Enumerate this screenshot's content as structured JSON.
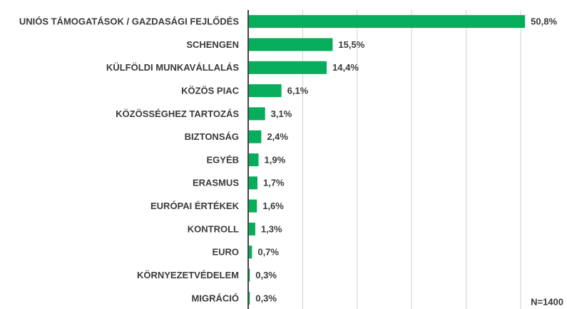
{
  "chart_data": {
    "type": "barh",
    "categories": [
      "UNIÓS TÁMOGATÁSOK / GAZDASÁGI FEJLŐDÉS",
      "SCHENGEN",
      "KÜLFÖLDI MUNKAVÁLLALÁS",
      "KÖZÖS PIAC",
      "KÖZÖSSÉGHEZ TARTOZÁS",
      "BIZTONSÁG",
      "EGYÉB",
      "ERASMUS",
      "EURÓPAI ÉRTÉKEK",
      "KONTROLL",
      "EURO",
      "KÖRNYEZETVÉDELEM",
      "MIGRÁCIÓ"
    ],
    "values": [
      50.8,
      15.5,
      14.4,
      6.1,
      3.1,
      2.4,
      1.9,
      1.7,
      1.6,
      1.3,
      0.7,
      0.3,
      0.3
    ],
    "value_labels": [
      "50,8%",
      "15,5%",
      "14,4%",
      "6,1%",
      "3,1%",
      "2,4%",
      "1,9%",
      "1,7%",
      "1,6%",
      "1,3%",
      "0,7%",
      "0,3%",
      "0,3%"
    ],
    "color": "#06ad5a",
    "xlim": [
      0,
      58.5
    ],
    "xticks": [
      10,
      20,
      30,
      40,
      50
    ],
    "grid": true,
    "annotation": "N=1400"
  }
}
